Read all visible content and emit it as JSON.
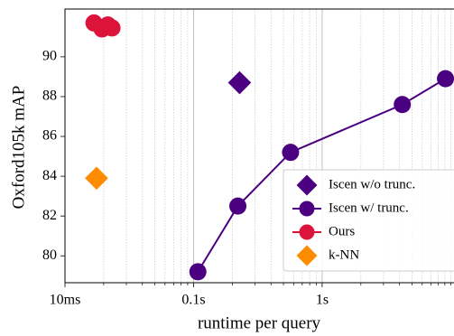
{
  "chart_data": {
    "type": "scatter",
    "xlabel": "runtime per query",
    "ylabel": "Oxford105k mAP",
    "xscale": "log",
    "xlim": [
      0.01,
      10.6
    ],
    "ylim": [
      78.65,
      92.4
    ],
    "xticks": [
      {
        "value": 0.01,
        "label": "10ms"
      },
      {
        "value": 0.1,
        "label": "0.1s"
      },
      {
        "value": 1,
        "label": "1s"
      }
    ],
    "xminorticks": [
      0.02,
      0.03,
      0.04,
      0.05,
      0.06,
      0.07,
      0.08,
      0.09,
      0.2,
      0.3,
      0.4,
      0.5,
      0.6,
      0.7,
      0.8,
      0.9,
      2,
      3,
      4,
      5,
      6,
      7,
      8,
      9,
      10
    ],
    "yticks": [
      80,
      82,
      84,
      86,
      88,
      90
    ],
    "grid": true,
    "legend": "lower right",
    "series": [
      {
        "name": "Iscen w/o trunc.",
        "color": "#4b0082",
        "marker": "diamond",
        "line": false,
        "x": [
          0.228
        ],
        "values": [
          88.7
        ]
      },
      {
        "name": "Iscen w/ trunc.",
        "color": "#4b0082",
        "marker": "circle",
        "line": true,
        "x": [
          0.108,
          0.221,
          0.568,
          4.2,
          9.1
        ],
        "values": [
          79.2,
          82.5,
          85.2,
          87.6,
          88.9
        ]
      },
      {
        "name": "Ours",
        "color": "#dc143c",
        "marker": "circle",
        "line": true,
        "x": [
          0.0168,
          0.0194,
          0.0215,
          0.0232
        ],
        "values": [
          91.7,
          91.4,
          91.6,
          91.45
        ]
      },
      {
        "name": "k-NN",
        "color": "#ff8c00",
        "marker": "diamond",
        "line": false,
        "x": [
          0.0176
        ],
        "values": [
          83.9
        ]
      }
    ]
  }
}
